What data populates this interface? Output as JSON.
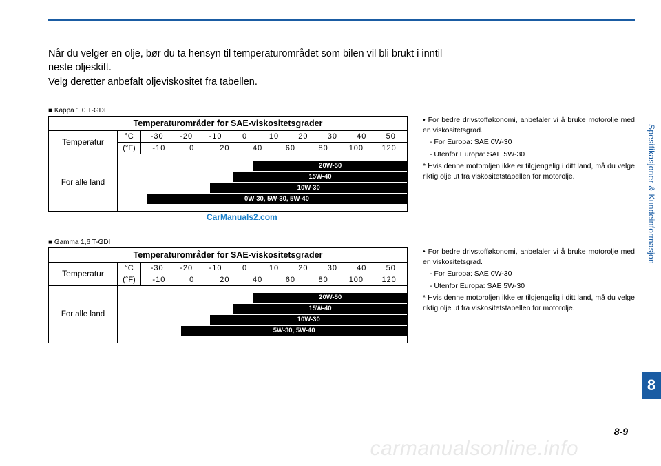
{
  "intro": {
    "line1": "Når du velger en olje, bør du ta hensyn til temperaturområdet som bilen vil bli brukt i inntil neste oljeskift.",
    "line2": "Velg deretter anbefalt oljeviskositet fra tabellen."
  },
  "chart1": {
    "caption": "Kappa 1,0 T-GDI",
    "title": "Temperaturområder for SAE-viskositetsgrader",
    "temp_label": "Temperatur",
    "unit_c": "°C",
    "unit_f": "(°F)",
    "scale_c": [
      "-30",
      "-20",
      "-10",
      "0",
      "10",
      "20",
      "30",
      "40",
      "50"
    ],
    "scale_f": [
      "-10",
      "0",
      "20",
      "40",
      "60",
      "80",
      "100",
      "120"
    ],
    "region_label": "For alle land",
    "bars": [
      {
        "label": "20W-50",
        "left_pct": 47,
        "right_pct": 0
      },
      {
        "label": "15W-40",
        "left_pct": 40,
        "right_pct": 0
      },
      {
        "label": "10W-30",
        "left_pct": 32,
        "right_pct": 0
      },
      {
        "label": "0W-30, 5W-30, 5W-40",
        "left_pct": 10,
        "right_pct": 0
      }
    ],
    "watermark": "CarManuals2.com"
  },
  "chart2": {
    "caption": "Gamma 1,6 T-GDI",
    "title": "Temperaturområder for SAE-viskositetsgrader",
    "temp_label": "Temperatur",
    "unit_c": "°C",
    "unit_f": "(°F)",
    "scale_c": [
      "-30",
      "-20",
      "-10",
      "0",
      "10",
      "20",
      "30",
      "40",
      "50"
    ],
    "scale_f": [
      "-10",
      "0",
      "20",
      "40",
      "60",
      "80",
      "100",
      "120"
    ],
    "region_label": "For alle land",
    "bars": [
      {
        "label": "20W-50",
        "left_pct": 47,
        "right_pct": 0
      },
      {
        "label": "15W-40",
        "left_pct": 40,
        "right_pct": 0
      },
      {
        "label": "10W-30",
        "left_pct": 32,
        "right_pct": 0
      },
      {
        "label": "5W-30, 5W-40",
        "left_pct": 22,
        "right_pct": 0
      }
    ]
  },
  "notes1": {
    "l1": "For bedre drivstofføkonomi, anbefaler vi å bruke motorolje med en viskositetsgrad.",
    "l2": "For Europa: SAE 0W-30",
    "l3": "Utenfor Europa: SAE 5W-30",
    "l4": "Hvis denne motoroljen ikke er tilgjengelig i ditt land, må du velge riktig olje ut fra viskositetstabellen for motorolje."
  },
  "notes2": {
    "l1": "For bedre drivstofføkonomi, anbefaler vi å bruke motorolje med en viskositetsgrad.",
    "l2": "For Europa: SAE 0W-30",
    "l3": "Utenfor Europa: SAE 5W-30",
    "l4": "Hvis denne motoroljen ikke er tilgjengelig i ditt land, må du velge riktig olje ut fra viskositetstabellen for motorolje."
  },
  "side": {
    "label": "Spesifikasjoner & Kundeinformasjon",
    "chapter": "8"
  },
  "footer": {
    "page": "8-9",
    "wm": "carmanualsonline.info"
  },
  "colors": {
    "accent": "#1a5ca3",
    "wm_blue": "#1a7fc9",
    "bar_bg": "#000000",
    "bar_fg": "#ffffff",
    "bottom_wm": "#e8e8e8"
  }
}
